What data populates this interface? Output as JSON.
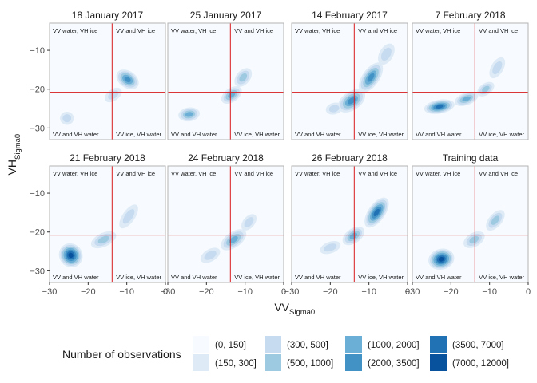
{
  "chart_data": {
    "type": "heatmap",
    "subtype": "faceted 2D density contour (filled)",
    "xlabel": "VV",
    "xlabel_subscript": "Sigma0",
    "ylabel": "VH",
    "ylabel_subscript": "Sigma0",
    "xlim": [
      -30,
      0
    ],
    "ylim": [
      -33,
      -3
    ],
    "x_ticks": [
      -30,
      -20,
      -10,
      0
    ],
    "y_ticks": [
      -10,
      -20,
      -30
    ],
    "grid": false,
    "threshold_lines": {
      "vv": -13.8,
      "vh": -20.8,
      "color": "#d7191c"
    },
    "quadrant_labels": {
      "top_left": "VV water, VH ice",
      "top_right": "VV and VH ice",
      "bottom_left": "VV and VH water",
      "bottom_right": "VV ice, VH water"
    },
    "legend": {
      "title": "Number of observations",
      "position": "bottom",
      "bins": [
        {
          "label": "(0, 150]",
          "color": "#f7fbff"
        },
        {
          "label": "(150, 300]",
          "color": "#deebf7"
        },
        {
          "label": "(300, 500]",
          "color": "#c6dbef"
        },
        {
          "label": "(500, 1000]",
          "color": "#9ecae1"
        },
        {
          "label": "(1000, 2000]",
          "color": "#6baed6"
        },
        {
          "label": "(2000, 3500]",
          "color": "#4292c6"
        },
        {
          "label": "(3500, 7000]",
          "color": "#2171b5"
        },
        {
          "label": "(7000, 12000]",
          "color": "#08519c"
        }
      ]
    },
    "panels": [
      {
        "title": "18 January 2017",
        "blobs": [
          {
            "cx": -9.8,
            "cy": -17.5,
            "sx": 2.2,
            "sy": 3.2,
            "rot": -55,
            "level": 5
          },
          {
            "cx": -13.5,
            "cy": -21.5,
            "sx": 2.5,
            "sy": 1.5,
            "rot": -35,
            "level": 2
          },
          {
            "cx": -25.5,
            "cy": -27.5,
            "sx": 1.8,
            "sy": 1.7,
            "rot": 0,
            "level": 2
          }
        ]
      },
      {
        "title": "25 January 2017",
        "blobs": [
          {
            "cx": -24.5,
            "cy": -26.5,
            "sx": 2.8,
            "sy": 1.8,
            "rot": -8,
            "level": 4
          },
          {
            "cx": -13.5,
            "cy": -21.5,
            "sx": 3.0,
            "sy": 1.8,
            "rot": -35,
            "level": 4
          },
          {
            "cx": -10.5,
            "cy": -17,
            "sx": 2.8,
            "sy": 1.8,
            "rot": -50,
            "level": 3
          }
        ]
      },
      {
        "title": "14 February 2017",
        "blobs": [
          {
            "cx": -14.5,
            "cy": -23,
            "sx": 4.0,
            "sy": 2.4,
            "rot": -35,
            "level": 5
          },
          {
            "cx": -9.5,
            "cy": -17,
            "sx": 4.5,
            "sy": 2.2,
            "rot": -55,
            "level": 5
          },
          {
            "cx": -5.5,
            "cy": -11,
            "sx": 3.0,
            "sy": 1.8,
            "rot": -60,
            "level": 2
          },
          {
            "cx": -19,
            "cy": -25,
            "sx": 2.2,
            "sy": 1.5,
            "rot": -15,
            "level": 2
          }
        ]
      },
      {
        "title": "7 February 2018",
        "blobs": [
          {
            "cx": -23,
            "cy": -24.5,
            "sx": 4.0,
            "sy": 1.8,
            "rot": -10,
            "level": 6
          },
          {
            "cx": -16,
            "cy": -22.5,
            "sx": 3.2,
            "sy": 1.6,
            "rot": -20,
            "level": 4
          },
          {
            "cx": -11,
            "cy": -20,
            "sx": 2.5,
            "sy": 1.5,
            "rot": -35,
            "level": 3
          },
          {
            "cx": -8,
            "cy": -14.5,
            "sx": 3.0,
            "sy": 1.6,
            "rot": -60,
            "level": 2
          }
        ]
      },
      {
        "title": "21 February 2018",
        "blobs": [
          {
            "cx": -24.5,
            "cy": -26,
            "sx": 3.0,
            "sy": 3.2,
            "rot": -40,
            "level": 7
          },
          {
            "cx": -16,
            "cy": -22,
            "sx": 3.5,
            "sy": 1.8,
            "rot": -25,
            "level": 3
          },
          {
            "cx": -9.5,
            "cy": -16,
            "sx": 3.6,
            "sy": 1.6,
            "rot": -55,
            "level": 2
          }
        ]
      },
      {
        "title": "24 February 2018",
        "blobs": [
          {
            "cx": -13,
            "cy": -22,
            "sx": 3.8,
            "sy": 2.0,
            "rot": -35,
            "level": 4
          },
          {
            "cx": -19,
            "cy": -26,
            "sx": 2.8,
            "sy": 1.6,
            "rot": -30,
            "level": 2
          },
          {
            "cx": -9,
            "cy": -17.5,
            "sx": 2.5,
            "sy": 1.5,
            "rot": -50,
            "level": 2
          }
        ]
      },
      {
        "title": "26 February 2018",
        "blobs": [
          {
            "cx": -8,
            "cy": -15,
            "sx": 4.5,
            "sy": 2.2,
            "rot": -55,
            "level": 6
          },
          {
            "cx": -14,
            "cy": -21,
            "sx": 3.2,
            "sy": 1.9,
            "rot": -35,
            "level": 4
          },
          {
            "cx": -20,
            "cy": -24,
            "sx": 2.8,
            "sy": 1.5,
            "rot": -20,
            "level": 2
          }
        ]
      },
      {
        "title": "Training data",
        "blobs": [
          {
            "cx": -22.5,
            "cy": -27,
            "sx": 3.4,
            "sy": 2.7,
            "rot": -15,
            "level": 7
          },
          {
            "cx": -14,
            "cy": -22,
            "sx": 3.0,
            "sy": 1.8,
            "rot": -30,
            "level": 3
          },
          {
            "cx": -8.5,
            "cy": -17,
            "sx": 3.2,
            "sy": 1.7,
            "rot": -50,
            "level": 3
          }
        ]
      }
    ]
  }
}
